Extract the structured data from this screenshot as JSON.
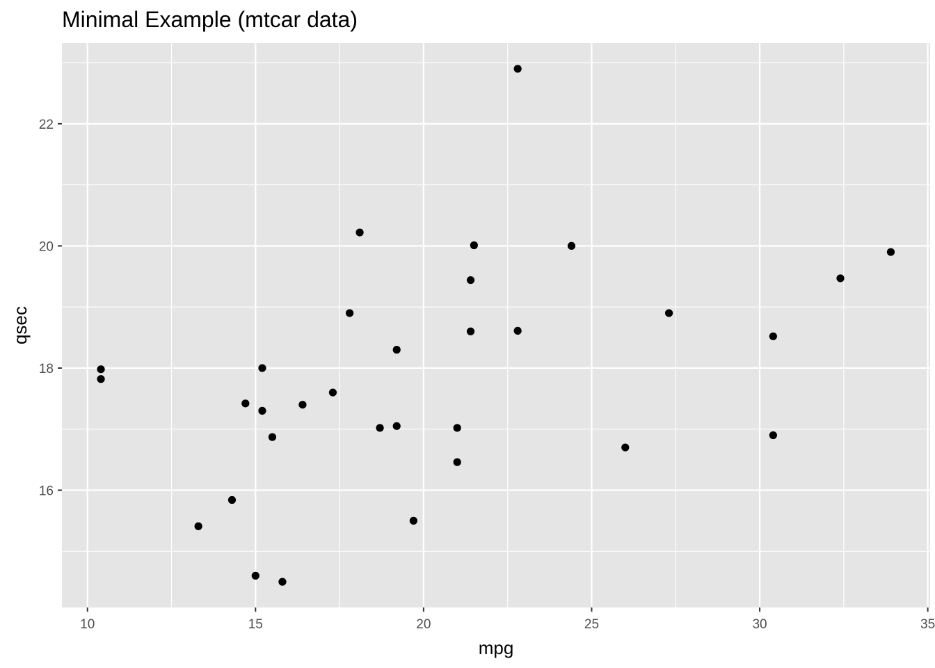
{
  "chart_data": {
    "type": "scatter",
    "title": "Minimal Example (mtcar data)",
    "xlabel": "mpg",
    "ylabel": "qsec",
    "xlim": [
      9.24,
      35.07
    ],
    "ylim": [
      14.08,
      23.32
    ],
    "x_ticks": [
      10,
      15,
      20,
      25,
      30,
      35
    ],
    "x_tick_labels": [
      "10",
      "15",
      "20",
      "25",
      "30",
      "35"
    ],
    "x_minor_ticks": [
      12.5,
      17.5,
      22.5,
      27.5,
      32.5
    ],
    "y_ticks": [
      16,
      18,
      20,
      22
    ],
    "y_tick_labels": [
      "16",
      "18",
      "20",
      "22"
    ],
    "y_minor_ticks": [
      15,
      17,
      19,
      21,
      23
    ],
    "grid": true,
    "panel_background": "#e5e5e5",
    "grid_color": "#ffffff",
    "point_color": "#000000",
    "points": [
      {
        "x": 21.0,
        "y": 16.46
      },
      {
        "x": 21.0,
        "y": 17.02
      },
      {
        "x": 22.8,
        "y": 18.61
      },
      {
        "x": 21.4,
        "y": 19.44
      },
      {
        "x": 18.7,
        "y": 17.02
      },
      {
        "x": 18.1,
        "y": 20.22
      },
      {
        "x": 14.3,
        "y": 15.84
      },
      {
        "x": 24.4,
        "y": 20.0
      },
      {
        "x": 22.8,
        "y": 22.9
      },
      {
        "x": 19.2,
        "y": 18.3
      },
      {
        "x": 17.8,
        "y": 18.9
      },
      {
        "x": 16.4,
        "y": 17.4
      },
      {
        "x": 17.3,
        "y": 17.6
      },
      {
        "x": 15.2,
        "y": 18.0
      },
      {
        "x": 10.4,
        "y": 17.98
      },
      {
        "x": 10.4,
        "y": 17.82
      },
      {
        "x": 14.7,
        "y": 17.42
      },
      {
        "x": 32.4,
        "y": 19.47
      },
      {
        "x": 30.4,
        "y": 18.52
      },
      {
        "x": 33.9,
        "y": 19.9
      },
      {
        "x": 21.5,
        "y": 20.01
      },
      {
        "x": 15.5,
        "y": 16.87
      },
      {
        "x": 15.2,
        "y": 17.3
      },
      {
        "x": 13.3,
        "y": 15.41
      },
      {
        "x": 19.2,
        "y": 17.05
      },
      {
        "x": 27.3,
        "y": 18.9
      },
      {
        "x": 26.0,
        "y": 16.7
      },
      {
        "x": 30.4,
        "y": 16.9
      },
      {
        "x": 15.8,
        "y": 14.5
      },
      {
        "x": 19.7,
        "y": 15.5
      },
      {
        "x": 15.0,
        "y": 14.6
      },
      {
        "x": 21.4,
        "y": 18.6
      }
    ]
  }
}
